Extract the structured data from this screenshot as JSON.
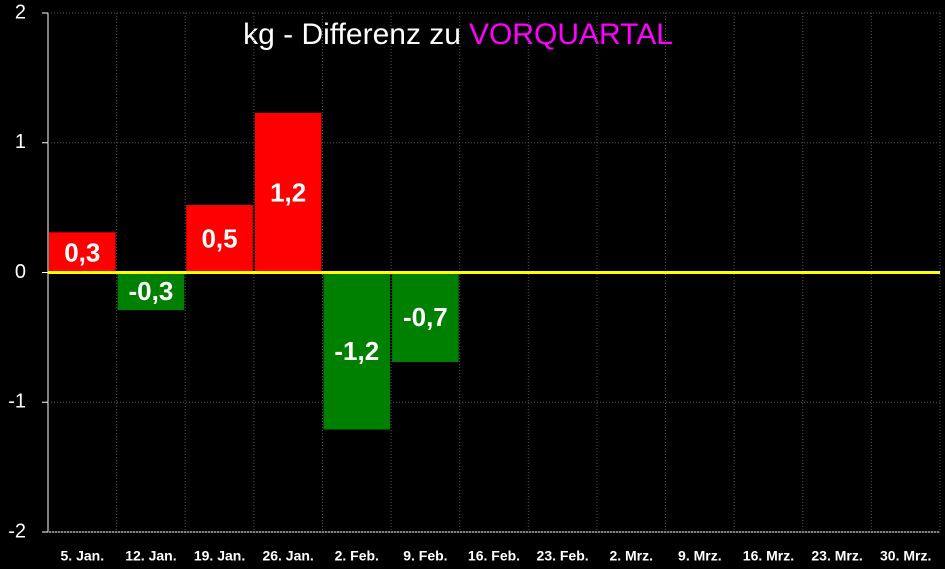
{
  "chart_data": {
    "type": "bar",
    "title": "kg - Differenz zu",
    "title_highlight": "VORQUARTAL",
    "title_highlight_color": "#ff00ff",
    "categories": [
      "5. Jan.",
      "12. Jan.",
      "19. Jan.",
      "26. Jan.",
      "2. Feb.",
      "9. Feb.",
      "16. Feb.",
      "23. Feb.",
      "2. Mrz.",
      "9. Mrz.",
      "16. Mrz.",
      "23. Mrz.",
      "30. Mrz."
    ],
    "values": [
      0.31,
      -0.29,
      0.52,
      1.23,
      -1.21,
      -0.69,
      null,
      null,
      null,
      null,
      null,
      null,
      null
    ],
    "value_labels": [
      "0,3",
      "-0,3",
      "0,5",
      "1,2",
      "-1,2",
      "-0,7",
      null,
      null,
      null,
      null,
      null,
      null,
      null
    ],
    "positive_color": "#ff0000",
    "negative_color": "#008000",
    "zero_line_color": "#ffff00",
    "ylim": [
      -2,
      2
    ],
    "yticks": [
      -2,
      -1,
      0,
      1,
      2
    ],
    "grid": true
  }
}
